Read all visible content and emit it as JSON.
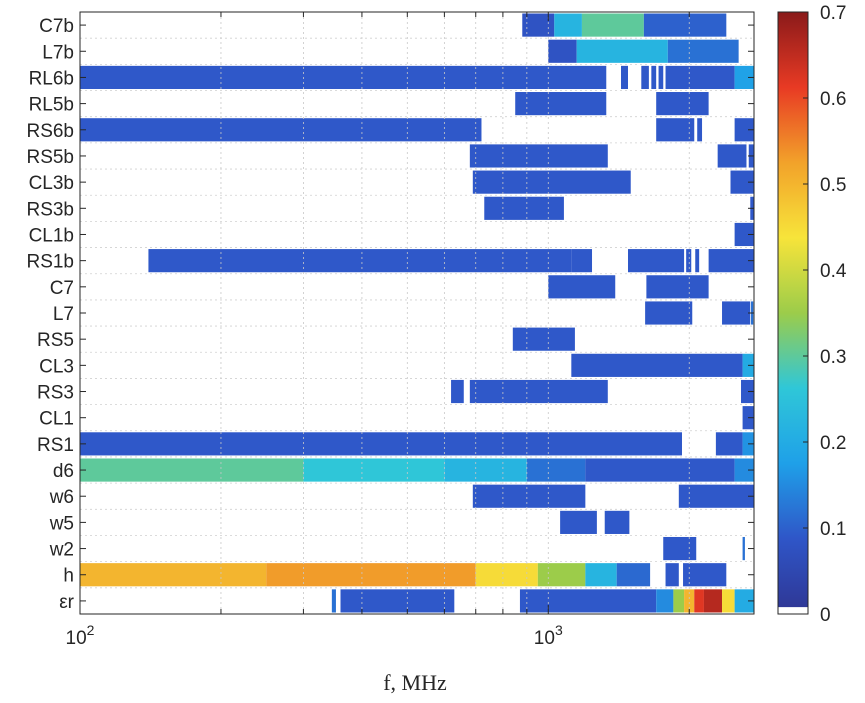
{
  "chart_data": {
    "type": "heatmap",
    "title": "",
    "xlabel": "f, MHz",
    "xscale": "log",
    "xlim": [
      100,
      2750
    ],
    "x_ticks": [
      {
        "value": 100,
        "base": "10",
        "exp": "2"
      },
      {
        "value": 1000,
        "base": "10",
        "exp": "3"
      }
    ],
    "rows": [
      "C7b",
      "L7b",
      "RL6b",
      "RL5b",
      "RS6b",
      "RS5b",
      "CL3b",
      "RS3b",
      "CL1b",
      "RS1b",
      "C7",
      "L7",
      "RS5",
      "CL3",
      "RS3",
      "CL1",
      "RS1",
      "d6",
      "w6",
      "w5",
      "w2",
      "h",
      "εr"
    ],
    "colorbar": {
      "range": [
        0,
        0.7
      ],
      "ticks": [
        0,
        0.1,
        0.2,
        0.3,
        0.4,
        0.5,
        0.6,
        0.7
      ],
      "tick_labels": [
        "0",
        "0.1",
        "0.2",
        "0.3",
        "0.4",
        "0.5",
        "0.6",
        "0.7"
      ],
      "colormap": "parula-jet",
      "colors": [
        "#ffffff",
        "#2f3592",
        "#2f56c8",
        "#1fa0e8",
        "#2fc7d8",
        "#9ccc4a",
        "#f7e43a",
        "#f2a22a",
        "#e83a24",
        "#8a1a1a"
      ]
    },
    "grid": true,
    "cells": [
      {
        "row": "C7b",
        "segments": [
          [
            880,
            1030,
            0.08
          ],
          [
            1030,
            1180,
            0.22
          ],
          [
            1180,
            1600,
            0.3
          ],
          [
            1600,
            2400,
            0.1
          ]
        ]
      },
      {
        "row": "L7b",
        "segments": [
          [
            1000,
            1150,
            0.08
          ],
          [
            1150,
            1800,
            0.22
          ],
          [
            1800,
            2550,
            0.12
          ]
        ]
      },
      {
        "row": "RL6b",
        "segments": [
          [
            100,
            1330,
            0.09
          ],
          [
            1430,
            1480,
            0.09
          ],
          [
            1580,
            1640,
            0.09
          ],
          [
            1660,
            1700,
            0.09
          ],
          [
            1720,
            1760,
            0.09
          ],
          [
            1780,
            2500,
            0.09
          ],
          [
            2500,
            2750,
            0.18
          ]
        ]
      },
      {
        "row": "RL5b",
        "segments": [
          [
            850,
            1330,
            0.09
          ],
          [
            1700,
            2200,
            0.09
          ]
        ]
      },
      {
        "row": "RS6b",
        "segments": [
          [
            100,
            720,
            0.09
          ],
          [
            1700,
            2050,
            0.09
          ],
          [
            2080,
            2130,
            0.09
          ],
          [
            2500,
            2750,
            0.09
          ]
        ]
      },
      {
        "row": "RS5b",
        "segments": [
          [
            680,
            1340,
            0.09
          ],
          [
            2300,
            2650,
            0.09
          ],
          [
            2680,
            2750,
            0.09
          ]
        ]
      },
      {
        "row": "CL3b",
        "segments": [
          [
            690,
            1500,
            0.09
          ],
          [
            2450,
            2750,
            0.09
          ]
        ]
      },
      {
        "row": "RS3b",
        "segments": [
          [
            730,
            1080,
            0.09
          ],
          [
            2700,
            2750,
            0.09
          ]
        ]
      },
      {
        "row": "CL1b",
        "segments": [
          [
            2500,
            2750,
            0.09
          ]
        ]
      },
      {
        "row": "RS1b",
        "segments": [
          [
            140,
            1120,
            0.09
          ],
          [
            1120,
            1240,
            0.09
          ],
          [
            1480,
            1950,
            0.09
          ],
          [
            1970,
            2020,
            0.09
          ],
          [
            2060,
            2100,
            0.09
          ],
          [
            2200,
            2750,
            0.09
          ]
        ]
      },
      {
        "row": "C7",
        "segments": [
          [
            1000,
            1390,
            0.09
          ],
          [
            1620,
            2200,
            0.09
          ]
        ]
      },
      {
        "row": "L7",
        "segments": [
          [
            1610,
            2030,
            0.09
          ],
          [
            2350,
            2700,
            0.09
          ],
          [
            2710,
            2740,
            0.12
          ]
        ]
      },
      {
        "row": "RS5",
        "segments": [
          [
            840,
            1140,
            0.09
          ]
        ]
      },
      {
        "row": "CL3",
        "segments": [
          [
            1120,
            2600,
            0.09
          ],
          [
            2600,
            2750,
            0.2
          ]
        ]
      },
      {
        "row": "RS3",
        "segments": [
          [
            620,
            660,
            0.09
          ],
          [
            680,
            1340,
            0.09
          ],
          [
            2580,
            2750,
            0.09
          ]
        ]
      },
      {
        "row": "CL1",
        "segments": [
          [
            2600,
            2750,
            0.09
          ]
        ]
      },
      {
        "row": "RS1",
        "segments": [
          [
            100,
            1930,
            0.09
          ],
          [
            2280,
            2600,
            0.09
          ],
          [
            2600,
            2750,
            0.16
          ]
        ]
      },
      {
        "row": "d6",
        "segments": [
          [
            100,
            300,
            0.3
          ],
          [
            300,
            600,
            0.26
          ],
          [
            600,
            900,
            0.22
          ],
          [
            900,
            1200,
            0.12
          ],
          [
            1200,
            2500,
            0.09
          ],
          [
            2500,
            2750,
            0.15
          ]
        ]
      },
      {
        "row": "w6",
        "segments": [
          [
            690,
            1200,
            0.09
          ],
          [
            1900,
            2750,
            0.09
          ]
        ]
      },
      {
        "row": "w5",
        "segments": [
          [
            1060,
            1270,
            0.09
          ],
          [
            1320,
            1490,
            0.09
          ]
        ]
      },
      {
        "row": "w2",
        "segments": [
          [
            1760,
            2070,
            0.09
          ],
          [
            2600,
            2630,
            0.12
          ]
        ]
      },
      {
        "row": "h",
        "segments": [
          [
            100,
            250,
            0.5
          ],
          [
            250,
            700,
            0.53
          ],
          [
            700,
            950,
            0.45
          ],
          [
            950,
            1200,
            0.35
          ],
          [
            1200,
            1400,
            0.22
          ],
          [
            1400,
            1650,
            0.11
          ],
          [
            1780,
            1900,
            0.09
          ],
          [
            1940,
            2400,
            0.09
          ]
        ]
      },
      {
        "row": "εr",
        "segments": [
          [
            345,
            352,
            0.12
          ],
          [
            360,
            630,
            0.09
          ],
          [
            870,
            1700,
            0.09
          ],
          [
            1700,
            1850,
            0.15
          ],
          [
            1850,
            1950,
            0.35
          ],
          [
            1950,
            2050,
            0.5
          ],
          [
            2050,
            2150,
            0.62
          ],
          [
            2150,
            2350,
            0.66
          ],
          [
            2350,
            2500,
            0.45
          ],
          [
            2500,
            2750,
            0.2
          ]
        ]
      }
    ]
  }
}
